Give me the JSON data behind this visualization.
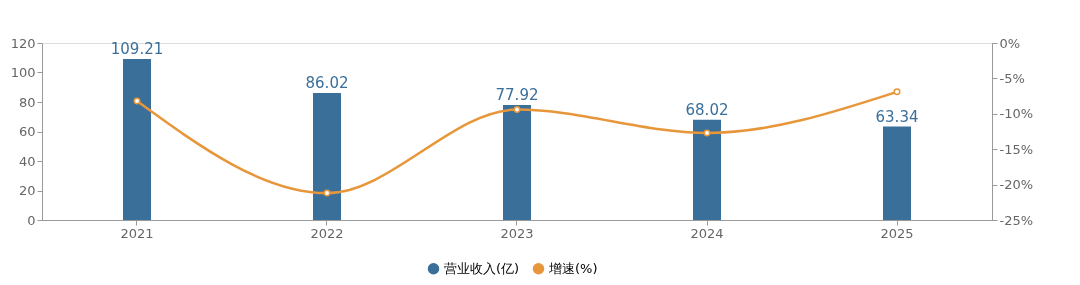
{
  "chart_data": {
    "type": "bar",
    "categories": [
      "2021",
      "2022",
      "2023",
      "2024",
      "2025"
    ],
    "series": [
      {
        "name": "营业收入(亿)",
        "type": "bar",
        "color": "#3a6f9a",
        "values": [
          109.21,
          86.02,
          77.92,
          68.02,
          63.34
        ]
      },
      {
        "name": "增速(%)",
        "type": "line",
        "axis": "y2",
        "color": "#e8963a",
        "values": [
          -8.2,
          -21.2,
          -9.4,
          -12.7,
          -6.9
        ]
      }
    ],
    "ylim": [
      0,
      120
    ],
    "yticks": [
      0,
      20,
      40,
      60,
      80,
      100,
      120
    ],
    "y2lim": [
      -25,
      0
    ],
    "y2ticks": [
      {
        "value": 0,
        "label": "0%"
      },
      {
        "value": -5,
        "label": "-5%"
      },
      {
        "value": -10,
        "label": "-10%"
      },
      {
        "value": -15,
        "label": "-15%"
      },
      {
        "value": -20,
        "label": "-20%"
      },
      {
        "value": -25,
        "label": "-25%"
      }
    ],
    "value_labels": [
      "109.21",
      "86.02",
      "77.92",
      "68.02",
      "63.34"
    ],
    "marker": "circle",
    "legend": "bottom",
    "grid": false
  }
}
